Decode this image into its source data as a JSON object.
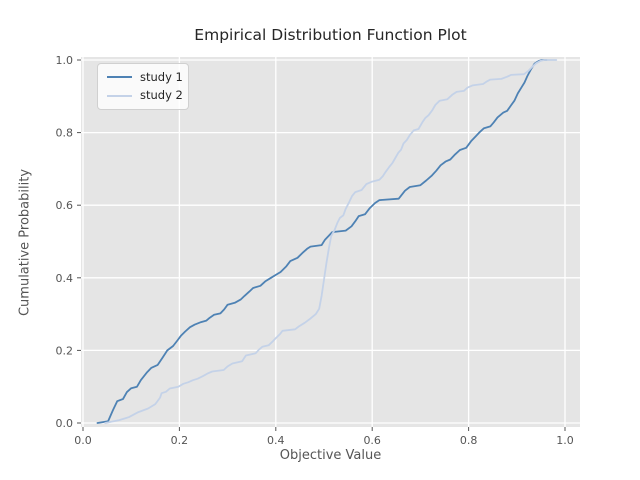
{
  "title": "Empirical Distribution Function Plot",
  "axes": {
    "xlabel": "Objective Value",
    "ylabel": "Cumulative Probability",
    "x_tick_labels": [
      "0.0",
      "0.2",
      "0.4",
      "0.6",
      "0.8",
      "1.0"
    ],
    "y_tick_labels": [
      "0.0",
      "0.2",
      "0.4",
      "0.6",
      "0.8",
      "1.0"
    ],
    "x_tick_values": [
      0.0,
      0.2,
      0.4,
      0.6,
      0.8,
      1.0
    ],
    "y_tick_values": [
      0.0,
      0.2,
      0.4,
      0.6,
      0.8,
      1.0
    ]
  },
  "legend": {
    "items": [
      {
        "label": "study 1",
        "color": "#4e82b4"
      },
      {
        "label": "study 2",
        "color": "#c4d2e8"
      }
    ],
    "position": "upper left"
  },
  "colors": {
    "panel_background": "#e5e5e5",
    "figure_background": "#ffffff",
    "gridline": "#ffffff",
    "tick_text": "#555555",
    "title_text": "#262626",
    "series1": "#4e82b4",
    "series2": "#c4d2e8"
  },
  "chart_data": {
    "type": "line",
    "subtype": "ecdf",
    "title": "Empirical Distribution Function Plot",
    "xlabel": "Objective Value",
    "ylabel": "Cumulative Probability",
    "xlim": [
      -0.004,
      1.031
    ],
    "ylim": [
      -0.011,
      1.008
    ],
    "grid": true,
    "legend_position": "upper left",
    "series": [
      {
        "name": "study 1",
        "color": "#4e82b4",
        "points": [
          [
            0.03,
            0.0
          ],
          [
            0.052,
            0.005
          ],
          [
            0.062,
            0.035
          ],
          [
            0.071,
            0.06
          ],
          [
            0.083,
            0.066
          ],
          [
            0.091,
            0.085
          ],
          [
            0.1,
            0.096
          ],
          [
            0.112,
            0.1
          ],
          [
            0.12,
            0.118
          ],
          [
            0.133,
            0.14
          ],
          [
            0.142,
            0.152
          ],
          [
            0.155,
            0.16
          ],
          [
            0.165,
            0.18
          ],
          [
            0.175,
            0.2
          ],
          [
            0.187,
            0.212
          ],
          [
            0.195,
            0.226
          ],
          [
            0.203,
            0.24
          ],
          [
            0.212,
            0.252
          ],
          [
            0.222,
            0.264
          ],
          [
            0.232,
            0.271
          ],
          [
            0.245,
            0.278
          ],
          [
            0.256,
            0.282
          ],
          [
            0.263,
            0.29
          ],
          [
            0.272,
            0.298
          ],
          [
            0.285,
            0.302
          ],
          [
            0.293,
            0.313
          ],
          [
            0.3,
            0.326
          ],
          [
            0.315,
            0.331
          ],
          [
            0.327,
            0.34
          ],
          [
            0.335,
            0.35
          ],
          [
            0.345,
            0.362
          ],
          [
            0.353,
            0.372
          ],
          [
            0.368,
            0.378
          ],
          [
            0.378,
            0.39
          ],
          [
            0.39,
            0.4
          ],
          [
            0.4,
            0.408
          ],
          [
            0.41,
            0.416
          ],
          [
            0.422,
            0.432
          ],
          [
            0.43,
            0.446
          ],
          [
            0.445,
            0.455
          ],
          [
            0.455,
            0.468
          ],
          [
            0.465,
            0.48
          ],
          [
            0.472,
            0.486
          ],
          [
            0.495,
            0.49
          ],
          [
            0.502,
            0.505
          ],
          [
            0.51,
            0.516
          ],
          [
            0.517,
            0.526
          ],
          [
            0.545,
            0.53
          ],
          [
            0.557,
            0.542
          ],
          [
            0.565,
            0.556
          ],
          [
            0.572,
            0.57
          ],
          [
            0.585,
            0.575
          ],
          [
            0.595,
            0.592
          ],
          [
            0.606,
            0.606
          ],
          [
            0.615,
            0.614
          ],
          [
            0.655,
            0.618
          ],
          [
            0.668,
            0.64
          ],
          [
            0.678,
            0.65
          ],
          [
            0.7,
            0.655
          ],
          [
            0.712,
            0.668
          ],
          [
            0.724,
            0.682
          ],
          [
            0.733,
            0.695
          ],
          [
            0.742,
            0.71
          ],
          [
            0.752,
            0.72
          ],
          [
            0.762,
            0.726
          ],
          [
            0.772,
            0.74
          ],
          [
            0.782,
            0.752
          ],
          [
            0.795,
            0.758
          ],
          [
            0.805,
            0.776
          ],
          [
            0.815,
            0.79
          ],
          [
            0.822,
            0.8
          ],
          [
            0.832,
            0.812
          ],
          [
            0.845,
            0.817
          ],
          [
            0.852,
            0.828
          ],
          [
            0.86,
            0.842
          ],
          [
            0.872,
            0.855
          ],
          [
            0.88,
            0.86
          ],
          [
            0.888,
            0.875
          ],
          [
            0.895,
            0.888
          ],
          [
            0.902,
            0.908
          ],
          [
            0.91,
            0.925
          ],
          [
            0.916,
            0.938
          ],
          [
            0.922,
            0.956
          ],
          [
            0.93,
            0.976
          ],
          [
            0.937,
            0.99
          ],
          [
            0.945,
            0.997
          ],
          [
            0.952,
            1.0
          ],
          [
            0.962,
            1.0
          ]
        ]
      },
      {
        "name": "study 2",
        "color": "#c4d2e8",
        "points": [
          [
            0.046,
            0.0
          ],
          [
            0.075,
            0.008
          ],
          [
            0.095,
            0.016
          ],
          [
            0.115,
            0.03
          ],
          [
            0.135,
            0.04
          ],
          [
            0.15,
            0.052
          ],
          [
            0.16,
            0.07
          ],
          [
            0.163,
            0.082
          ],
          [
            0.172,
            0.086
          ],
          [
            0.18,
            0.095
          ],
          [
            0.198,
            0.1
          ],
          [
            0.208,
            0.108
          ],
          [
            0.218,
            0.112
          ],
          [
            0.228,
            0.118
          ],
          [
            0.238,
            0.122
          ],
          [
            0.25,
            0.13
          ],
          [
            0.258,
            0.136
          ],
          [
            0.268,
            0.142
          ],
          [
            0.292,
            0.146
          ],
          [
            0.3,
            0.156
          ],
          [
            0.31,
            0.164
          ],
          [
            0.33,
            0.17
          ],
          [
            0.338,
            0.186
          ],
          [
            0.358,
            0.192
          ],
          [
            0.365,
            0.202
          ],
          [
            0.372,
            0.21
          ],
          [
            0.385,
            0.214
          ],
          [
            0.393,
            0.224
          ],
          [
            0.4,
            0.234
          ],
          [
            0.408,
            0.244
          ],
          [
            0.414,
            0.254
          ],
          [
            0.44,
            0.258
          ],
          [
            0.448,
            0.266
          ],
          [
            0.46,
            0.276
          ],
          [
            0.472,
            0.288
          ],
          [
            0.483,
            0.3
          ],
          [
            0.49,
            0.315
          ],
          [
            0.495,
            0.35
          ],
          [
            0.5,
            0.395
          ],
          [
            0.505,
            0.44
          ],
          [
            0.51,
            0.48
          ],
          [
            0.515,
            0.515
          ],
          [
            0.522,
            0.532
          ],
          [
            0.528,
            0.552
          ],
          [
            0.533,
            0.565
          ],
          [
            0.54,
            0.572
          ],
          [
            0.545,
            0.59
          ],
          [
            0.552,
            0.608
          ],
          [
            0.558,
            0.625
          ],
          [
            0.565,
            0.636
          ],
          [
            0.578,
            0.642
          ],
          [
            0.588,
            0.658
          ],
          [
            0.6,
            0.665
          ],
          [
            0.615,
            0.67
          ],
          [
            0.622,
            0.68
          ],
          [
            0.628,
            0.692
          ],
          [
            0.635,
            0.705
          ],
          [
            0.642,
            0.716
          ],
          [
            0.648,
            0.73
          ],
          [
            0.654,
            0.744
          ],
          [
            0.66,
            0.753
          ],
          [
            0.665,
            0.77
          ],
          [
            0.672,
            0.78
          ],
          [
            0.678,
            0.793
          ],
          [
            0.686,
            0.806
          ],
          [
            0.696,
            0.81
          ],
          [
            0.704,
            0.828
          ],
          [
            0.71,
            0.84
          ],
          [
            0.717,
            0.848
          ],
          [
            0.725,
            0.862
          ],
          [
            0.731,
            0.876
          ],
          [
            0.74,
            0.888
          ],
          [
            0.756,
            0.892
          ],
          [
            0.766,
            0.904
          ],
          [
            0.775,
            0.912
          ],
          [
            0.79,
            0.915
          ],
          [
            0.798,
            0.924
          ],
          [
            0.808,
            0.93
          ],
          [
            0.83,
            0.934
          ],
          [
            0.838,
            0.941
          ],
          [
            0.845,
            0.946
          ],
          [
            0.868,
            0.948
          ],
          [
            0.88,
            0.954
          ],
          [
            0.888,
            0.959
          ],
          [
            0.915,
            0.961
          ],
          [
            0.924,
            0.97
          ],
          [
            0.931,
            0.98
          ],
          [
            0.94,
            0.991
          ],
          [
            0.95,
            0.998
          ],
          [
            0.957,
            1.0
          ],
          [
            0.982,
            1.0
          ]
        ]
      }
    ]
  }
}
